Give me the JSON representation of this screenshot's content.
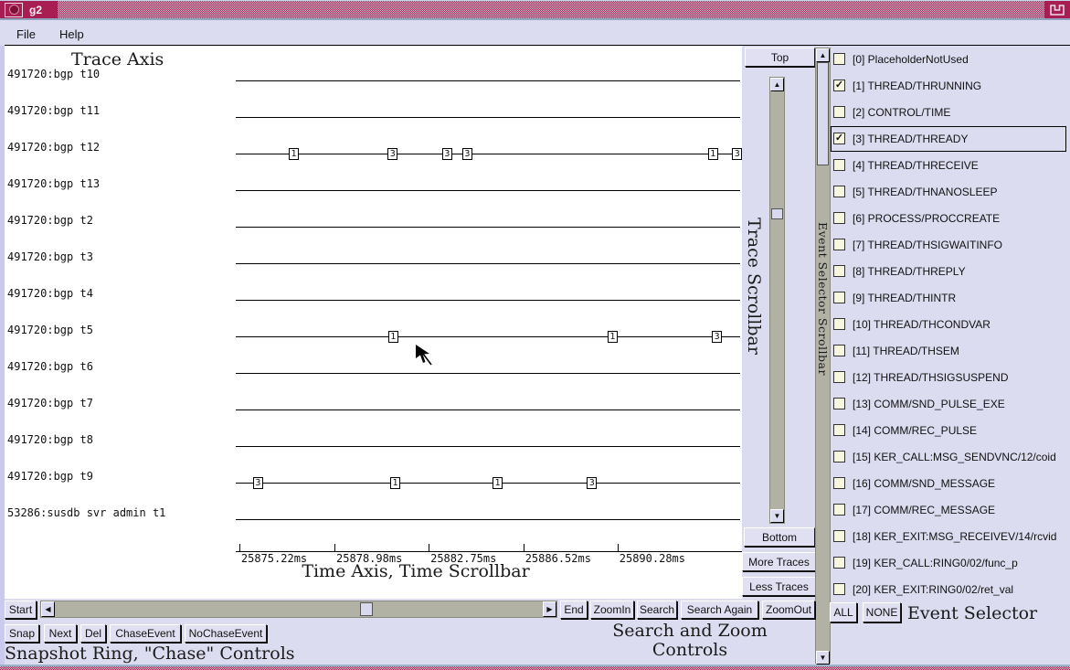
{
  "window": {
    "title": "g2"
  },
  "menubar": {
    "items": [
      "File",
      "Help"
    ]
  },
  "icons": {
    "up": "▲",
    "down": "▼",
    "left": "◀",
    "right": "▶",
    "check": "✓"
  },
  "annotations": {
    "trace_axis": "Trace Axis",
    "trace_scrollbar": "Trace Scrollbar",
    "event_selector_scrollbar": "Event Selector Scrollbar",
    "time_axis": "Time Axis, Time Scrollbar",
    "search_zoom_line1": "Search and Zoom",
    "search_zoom_line2": "Controls",
    "snapshot_ring": "Snapshot Ring, \"Chase\" Controls",
    "event_selector": "Event Selector"
  },
  "controls": {
    "top": "Top",
    "bottom": "Bottom",
    "more_traces": "More Traces",
    "less_traces": "Less Traces",
    "start": "Start",
    "end": "End",
    "zoom_in": "ZoomIn",
    "search": "Search",
    "search_again": "Search Again",
    "zoom_out": "ZoomOut",
    "snap": "Snap",
    "next": "Next",
    "del": "Del",
    "chase_event": "ChaseEvent",
    "no_chase_event": "NoChaseEvent",
    "all": "ALL",
    "none": "NONE"
  },
  "traces": [
    {
      "name": "491720:bgp t10",
      "events": []
    },
    {
      "name": "491720:bgp t11",
      "events": []
    },
    {
      "name": "491720:bgp t12",
      "events": [
        {
          "label": "1",
          "pct": 11.6
        },
        {
          "label": "3",
          "pct": 31.2
        },
        {
          "label": "3",
          "pct": 42.0
        },
        {
          "label": "3",
          "pct": 46.0
        },
        {
          "label": "1",
          "pct": 94.7
        },
        {
          "label": "3",
          "pct": 99.5
        }
      ]
    },
    {
      "name": "491720:bgp t13",
      "events": []
    },
    {
      "name": "491720:bgp t2",
      "events": []
    },
    {
      "name": "491720:bgp t3",
      "events": []
    },
    {
      "name": "491720:bgp t4",
      "events": []
    },
    {
      "name": "491720:bgp t5",
      "events": [
        {
          "label": "1",
          "pct": 31.3
        },
        {
          "label": "1",
          "pct": 74.8
        },
        {
          "label": "3",
          "pct": 95.5
        }
      ]
    },
    {
      "name": "491720:bgp t6",
      "events": []
    },
    {
      "name": "491720:bgp t7",
      "events": []
    },
    {
      "name": "491720:bgp t8",
      "events": []
    },
    {
      "name": "491720:bgp t9",
      "events": [
        {
          "label": "3",
          "pct": 4.5
        },
        {
          "label": "1",
          "pct": 31.7
        },
        {
          "label": "1",
          "pct": 52.0
        },
        {
          "label": "3",
          "pct": 70.7
        }
      ]
    },
    {
      "name": "53286:susdb svr admin t1",
      "events": []
    }
  ],
  "time_axis": {
    "ticks": [
      {
        "label": "25875.22ms",
        "pct": 0.7
      },
      {
        "label": "25878.98ms",
        "pct": 19.4
      },
      {
        "label": "25882.75ms",
        "pct": 37.9
      },
      {
        "label": "25886.52ms",
        "pct": 56.5
      },
      {
        "label": "25890.28ms",
        "pct": 75.0
      }
    ]
  },
  "event_selector": {
    "items": [
      {
        "label": "[0] PlaceholderNotUsed",
        "checked": false,
        "focused": false
      },
      {
        "label": "[1] THREAD/THRUNNING",
        "checked": true,
        "focused": false
      },
      {
        "label": "[2] CONTROL/TIME",
        "checked": false,
        "focused": false
      },
      {
        "label": "[3] THREAD/THREADY",
        "checked": true,
        "focused": true
      },
      {
        "label": "[4] THREAD/THRECEIVE",
        "checked": false,
        "focused": false
      },
      {
        "label": "[5] THREAD/THNANOSLEEP",
        "checked": false,
        "focused": false
      },
      {
        "label": "[6] PROCESS/PROCCREATE",
        "checked": false,
        "focused": false
      },
      {
        "label": "[7] THREAD/THSIGWAITINFO",
        "checked": false,
        "focused": false
      },
      {
        "label": "[8] THREAD/THREPLY",
        "checked": false,
        "focused": false
      },
      {
        "label": "[9] THREAD/THINTR",
        "checked": false,
        "focused": false
      },
      {
        "label": "[10] THREAD/THCONDVAR",
        "checked": false,
        "focused": false
      },
      {
        "label": "[11] THREAD/THSEM",
        "checked": false,
        "focused": false
      },
      {
        "label": "[12] THREAD/THSIGSUSPEND",
        "checked": false,
        "focused": false
      },
      {
        "label": "[13] COMM/SND_PULSE_EXE",
        "checked": false,
        "focused": false
      },
      {
        "label": "[14] COMM/REC_PULSE",
        "checked": false,
        "focused": false
      },
      {
        "label": "[15] KER_CALL:MSG_SENDVNC/12/coid",
        "checked": false,
        "focused": false
      },
      {
        "label": "[16] COMM/SND_MESSAGE",
        "checked": false,
        "focused": false
      },
      {
        "label": "[17] COMM/REC_MESSAGE",
        "checked": false,
        "focused": false
      },
      {
        "label": "[18] KER_EXIT:MSG_RECEIVEV/14/rcvid",
        "checked": false,
        "focused": false
      },
      {
        "label": "[19] KER_CALL:RING0/02/func_p",
        "checked": false,
        "focused": false
      },
      {
        "label": "[20] KER_EXIT:RING0/02/ret_val",
        "checked": false,
        "focused": false
      }
    ]
  },
  "colors": {
    "titlebar": "#a81e52",
    "panel": "#dcdcf0",
    "canvas": "#ffffff",
    "scrollbar_track": "#b2b2a4",
    "checkbox_fill": "#f7f7e0"
  }
}
